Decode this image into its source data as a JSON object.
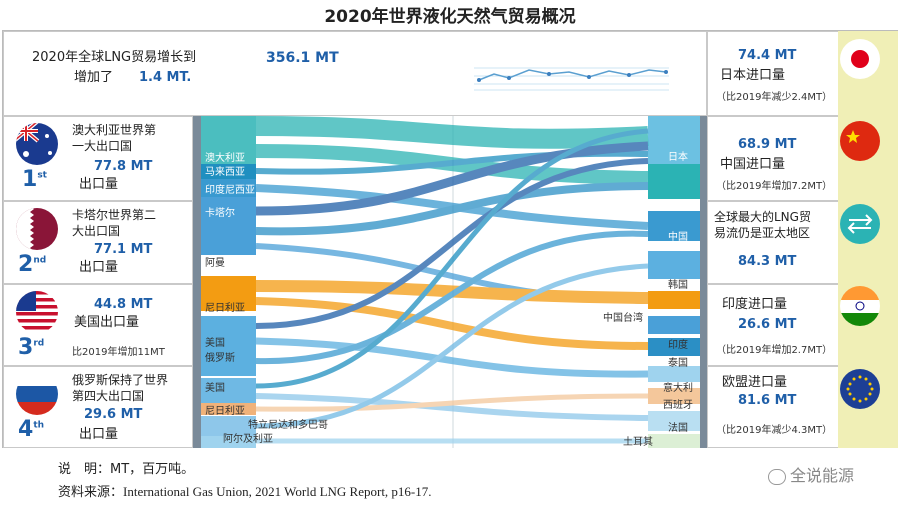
{
  "title": "2020年世界液化天然气贸易概况",
  "header": {
    "line1": "2020年全球LNG贸易增长到",
    "total": "356.1 MT",
    "line2": "增加了",
    "increase": "1.4 MT."
  },
  "exporters": [
    {
      "desc1": "澳大利亚世界第",
      "desc2": "一大出口国",
      "value": "77.8 MT",
      "desc3": "出口量",
      "rank": "1",
      "suffix": "st"
    },
    {
      "desc1": "卡塔尔世界第二",
      "desc2": "大出口国",
      "value": "77.1 MT",
      "desc3": "出口量",
      "rank": "2",
      "suffix": "nd"
    },
    {
      "desc1": "",
      "value": "44.8 MT",
      "desc2": "美国出口量",
      "desc3": "比2019年增加11MT",
      "rank": "3",
      "suffix": "rd"
    },
    {
      "desc1": "俄罗斯保持了世界",
      "desc2": "第四大出口国",
      "value": "29.6 MT",
      "desc3": "出口量",
      "rank": "4",
      "suffix": "th"
    }
  ],
  "importers": [
    {
      "value": "74.4 MT",
      "desc": "日本进口量",
      "note": "（比2019年减少2.4MT）"
    },
    {
      "value": "68.9 MT",
      "desc": "中国进口量",
      "note": "（比2019年增加7.2MT）"
    },
    {
      "desc1": "全球最大的LNG贸",
      "desc2": "易流仍是亚太地区",
      "value": "84.3 MT"
    },
    {
      "desc": "印度进口量",
      "value": "26.6 MT",
      "note": "（比2019年增加2.7MT）"
    },
    {
      "desc": "欧盟进口量",
      "value": "81.6 MT",
      "note": "（比2019年减少4.3MT）"
    }
  ],
  "left_nodes": [
    "澳大利亚",
    "马来西亚",
    "印度尼西亚",
    "卡塔尔",
    "阿曼",
    "尼日利亚",
    "美国",
    "俄罗斯",
    "美国",
    "尼日利亚",
    "特立尼达和多巴哥",
    "阿尔及利亚"
  ],
  "right_nodes": [
    "日本",
    "中国",
    "韩国",
    "中国台湾",
    "印度",
    "泰国",
    "意大利",
    "西班牙",
    "法国",
    "土耳其"
  ],
  "footer": {
    "line1_label": "说　明：",
    "line1": "MT，百万吨。",
    "line2_label": "资料来源：",
    "line2": "International Gas Union, 2021 World LNG Report, p16-17."
  },
  "watermark": "全说能源",
  "colors": {
    "blue": "#1f5fa8",
    "teal": "#2bb3b4",
    "orange": "#f39c12",
    "lightblue": "#9fd3ee",
    "sidebar": "#f0efb6"
  }
}
